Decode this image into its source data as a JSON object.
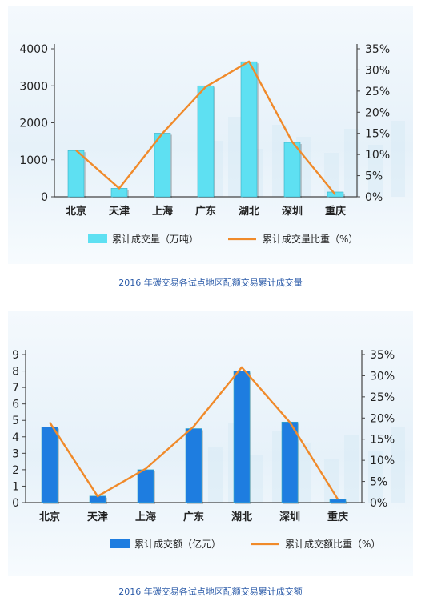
{
  "charts": [
    {
      "caption": "2016 年碳交易各试点地区配额交易累计成交量",
      "legend_bar": "累计成交量（万吨）",
      "legend_line": "累计成交量比重（%）"
    },
    {
      "caption": "2016 年碳交易各试点地区配额交易累计成交额",
      "legend_bar": "累计成交额（亿元）",
      "legend_line": "累计成交额比重（%）"
    }
  ],
  "chart_data": [
    {
      "type": "bar",
      "categories": [
        "北京",
        "天津",
        "上海",
        "广东",
        "湖北",
        "深圳",
        "重庆"
      ],
      "series": [
        {
          "name": "累计成交量（万吨）",
          "type": "bar",
          "axis": "left",
          "values": [
            1250,
            230,
            1720,
            3000,
            3650,
            1470,
            130
          ]
        },
        {
          "name": "累计成交量比重（%）",
          "type": "line",
          "axis": "right",
          "values": [
            11,
            2,
            15,
            26,
            32,
            13,
            0.5
          ]
        }
      ],
      "y_left": {
        "ticks": [
          "0",
          "1000",
          "2000",
          "3000",
          "4000"
        ],
        "lim": [
          0,
          4000
        ]
      },
      "y_right": {
        "ticks": [
          "0%",
          "5%",
          "10%",
          "15%",
          "20%",
          "25%",
          "30%",
          "35%"
        ],
        "lim": [
          0,
          35
        ]
      },
      "bar_color": "#5ee0f2",
      "line_color": "#f08a2a"
    },
    {
      "type": "bar",
      "categories": [
        "北京",
        "天津",
        "上海",
        "广东",
        "湖北",
        "深圳",
        "重庆"
      ],
      "series": [
        {
          "name": "累计成交额（亿元）",
          "type": "bar",
          "axis": "left",
          "values": [
            4.6,
            0.4,
            2.0,
            4.5,
            8.0,
            4.9,
            0.2
          ]
        },
        {
          "name": "累计成交额比重（%）",
          "type": "line",
          "axis": "right",
          "values": [
            19,
            1.5,
            8,
            18,
            32,
            19,
            0.8
          ]
        }
      ],
      "y_left": {
        "ticks": [
          "0",
          "1",
          "2",
          "3",
          "4",
          "5",
          "6",
          "7",
          "8",
          "9"
        ],
        "lim": [
          0,
          9
        ]
      },
      "y_right": {
        "ticks": [
          "0%",
          "5%",
          "10%",
          "15%",
          "20%",
          "25%",
          "30%",
          "35%"
        ],
        "lim": [
          0,
          35
        ]
      },
      "bar_color": "#1e7de0",
      "line_color": "#f08a2a"
    }
  ]
}
